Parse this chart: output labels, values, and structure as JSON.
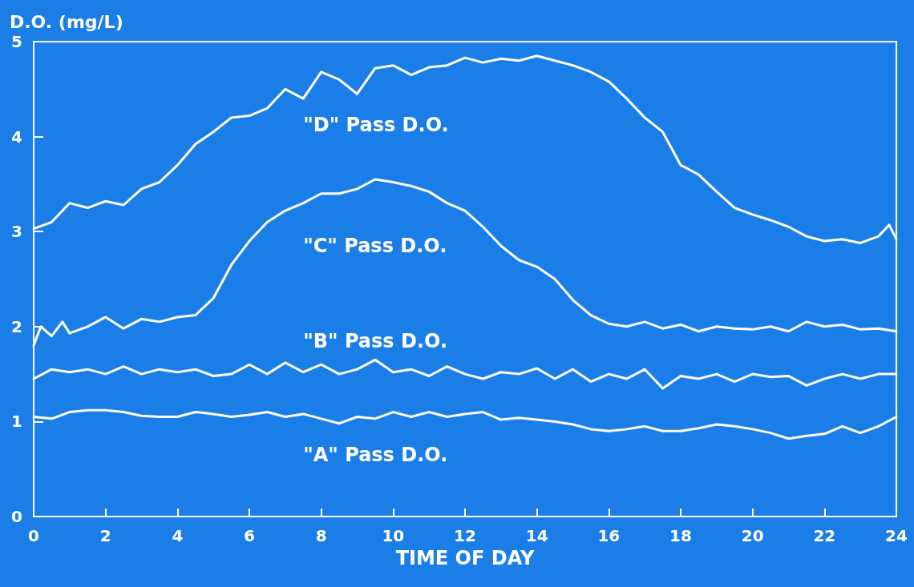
{
  "chart_data": {
    "type": "line",
    "xlabel": "TIME OF DAY",
    "ylabel": "D.O. (mg/L)",
    "xlim": [
      0,
      24
    ],
    "xticks": [
      0,
      2,
      4,
      6,
      8,
      10,
      12,
      14,
      16,
      18,
      20,
      22,
      24
    ],
    "ylim": [
      0,
      5
    ],
    "yticks": [
      0,
      1,
      2,
      3,
      4,
      5
    ],
    "grid": false,
    "legend": false,
    "marker": "none",
    "line_style": "solid",
    "series": [
      {
        "name": "\"D\" Pass D.O.",
        "color": "#ffffff",
        "x": [
          0,
          0.5,
          1,
          1.5,
          2,
          2.5,
          3,
          3.5,
          4,
          4.5,
          5,
          5.5,
          6,
          6.5,
          7,
          7.5,
          8,
          8.5,
          9,
          9.5,
          10,
          10.5,
          11,
          11.5,
          12,
          12.5,
          13,
          13.5,
          14,
          14.5,
          15,
          15.5,
          16,
          16.5,
          17,
          17.5,
          18,
          18.5,
          19,
          19.5,
          20,
          20.5,
          21,
          21.5,
          22,
          22.5,
          23,
          23.5,
          23.8,
          24
        ],
        "values": [
          3.03,
          3.1,
          3.3,
          3.25,
          3.32,
          3.28,
          3.45,
          3.52,
          3.7,
          3.92,
          4.05,
          4.2,
          4.22,
          4.3,
          4.5,
          4.4,
          4.68,
          4.6,
          4.45,
          4.72,
          4.75,
          4.65,
          4.73,
          4.75,
          4.83,
          4.78,
          4.82,
          4.8,
          4.85,
          4.8,
          4.75,
          4.68,
          4.58,
          4.4,
          4.2,
          4.05,
          3.7,
          3.6,
          3.42,
          3.25,
          3.18,
          3.12,
          3.05,
          2.95,
          2.9,
          2.92,
          2.88,
          2.95,
          3.07,
          2.92
        ]
      },
      {
        "name": "\"C\" Pass D.O.",
        "color": "#ffffff",
        "x": [
          0,
          0.2,
          0.5,
          0.8,
          1,
          1.5,
          2,
          2.5,
          3,
          3.5,
          4,
          4.5,
          5,
          5.5,
          6,
          6.5,
          7,
          7.5,
          8,
          8.5,
          9,
          9.5,
          10,
          10.5,
          11,
          11.5,
          12,
          12.5,
          13,
          13.5,
          14,
          14.5,
          15,
          15.5,
          16,
          16.5,
          17,
          17.5,
          18,
          18.5,
          19,
          19.5,
          20,
          20.5,
          21,
          21.5,
          22,
          22.5,
          23,
          23.5,
          24
        ],
        "values": [
          1.8,
          2.0,
          1.9,
          2.05,
          1.93,
          2.0,
          2.1,
          1.98,
          2.08,
          2.05,
          2.1,
          2.12,
          2.3,
          2.65,
          2.9,
          3.1,
          3.22,
          3.3,
          3.4,
          3.4,
          3.45,
          3.55,
          3.52,
          3.48,
          3.42,
          3.3,
          3.22,
          3.05,
          2.85,
          2.7,
          2.63,
          2.5,
          2.28,
          2.12,
          2.03,
          2.0,
          2.05,
          1.98,
          2.02,
          1.95,
          2.0,
          1.98,
          1.97,
          2.0,
          1.95,
          2.05,
          2.0,
          2.02,
          1.97,
          1.98,
          1.95
        ]
      },
      {
        "name": "\"B\" Pass D.O.",
        "color": "#ffffff",
        "x": [
          0,
          0.5,
          1,
          1.5,
          2,
          2.5,
          3,
          3.5,
          4,
          4.5,
          5,
          5.5,
          6,
          6.5,
          7,
          7.5,
          8,
          8.5,
          9,
          9.5,
          10,
          10.5,
          11,
          11.5,
          12,
          12.5,
          13,
          13.5,
          14,
          14.5,
          15,
          15.5,
          16,
          16.5,
          17,
          17.5,
          18,
          18.5,
          19,
          19.5,
          20,
          20.5,
          21,
          21.5,
          22,
          22.5,
          23,
          23.5,
          24
        ],
        "values": [
          1.45,
          1.55,
          1.52,
          1.55,
          1.5,
          1.58,
          1.5,
          1.55,
          1.52,
          1.55,
          1.48,
          1.5,
          1.6,
          1.5,
          1.62,
          1.52,
          1.6,
          1.5,
          1.55,
          1.65,
          1.52,
          1.55,
          1.48,
          1.58,
          1.5,
          1.45,
          1.52,
          1.5,
          1.56,
          1.45,
          1.55,
          1.42,
          1.5,
          1.45,
          1.55,
          1.35,
          1.48,
          1.45,
          1.5,
          1.42,
          1.5,
          1.47,
          1.48,
          1.38,
          1.45,
          1.5,
          1.45,
          1.5,
          1.5
        ]
      },
      {
        "name": "\"A\" Pass D.O.",
        "color": "#ffffff",
        "x": [
          0,
          0.5,
          1,
          1.5,
          2,
          2.5,
          3,
          3.5,
          4,
          4.5,
          5,
          5.5,
          6,
          6.5,
          7,
          7.5,
          8,
          8.5,
          9,
          9.5,
          10,
          10.5,
          11,
          11.5,
          12,
          12.5,
          13,
          13.5,
          14,
          14.5,
          15,
          15.5,
          16,
          16.5,
          17,
          17.5,
          18,
          18.5,
          19,
          19.5,
          20,
          20.5,
          21,
          21.5,
          22,
          22.5,
          23,
          23.5,
          24
        ],
        "values": [
          1.05,
          1.03,
          1.1,
          1.12,
          1.12,
          1.1,
          1.06,
          1.05,
          1.05,
          1.1,
          1.08,
          1.05,
          1.07,
          1.1,
          1.05,
          1.08,
          1.03,
          0.98,
          1.05,
          1.03,
          1.1,
          1.05,
          1.1,
          1.05,
          1.08,
          1.1,
          1.02,
          1.04,
          1.02,
          1.0,
          0.97,
          0.92,
          0.9,
          0.92,
          0.95,
          0.9,
          0.9,
          0.93,
          0.97,
          0.95,
          0.92,
          0.88,
          0.82,
          0.85,
          0.87,
          0.95,
          0.88,
          0.95,
          1.05
        ]
      }
    ]
  }
}
